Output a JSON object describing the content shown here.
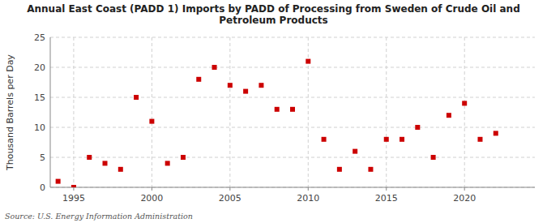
{
  "chart_data": {
    "type": "scatter",
    "title": "Annual East Coast (PADD 1) Imports by PADD of Processing from Sweden of Crude Oil and\nPetroleum Products",
    "y_label": "Thousand Barrels per Day",
    "source": "Source: U.S. Energy Information Administration",
    "x": [
      1994,
      1995,
      1996,
      1997,
      1998,
      1999,
      2000,
      2001,
      2002,
      2003,
      2004,
      2005,
      2006,
      2007,
      2008,
      2009,
      2010,
      2011,
      2012,
      2013,
      2014,
      2015,
      2016,
      2017,
      2018,
      2019,
      2020,
      2021,
      2022
    ],
    "values": [
      1,
      0,
      5,
      4,
      3,
      15,
      11,
      4,
      5,
      18,
      20,
      17,
      16,
      17,
      13,
      13,
      21,
      8,
      3,
      6,
      3,
      8,
      8,
      10,
      5,
      12,
      14,
      8,
      9
    ],
    "color": "#cc0000",
    "marker": "square",
    "xlim": [
      1993.5,
      2024.5
    ],
    "ylim": [
      0,
      25
    ],
    "xticks": [
      1995,
      2000,
      2005,
      2010,
      2015,
      2020
    ],
    "yticks": [
      0,
      5,
      10,
      15,
      20,
      25
    ],
    "grid": true
  }
}
